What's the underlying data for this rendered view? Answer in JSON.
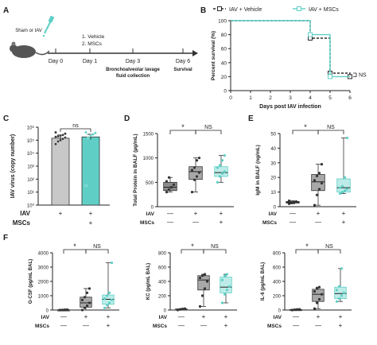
{
  "colors": {
    "gray": "#a8a8a8",
    "teal": "#5fcfc6",
    "dark": "#2b2b2b",
    "light": "#e6e6e6"
  },
  "panels": {
    "A": "A",
    "B": "B",
    "C": "C",
    "D": "D",
    "E": "E",
    "F": "F"
  },
  "timeline": {
    "group": "Sham or IAV",
    "treatments": [
      "1. Vehicle",
      "2. MSCs"
    ],
    "days": [
      "Day 0",
      "Day 1",
      "Day 3",
      "Day 6"
    ],
    "day3_note": "Bronchoalveolar lavage fluid collection",
    "day6_note": "Survival"
  },
  "row_labels": {
    "iav": "IAV",
    "mscs": "MSCs"
  },
  "chart_data": [
    {
      "panel": "B",
      "type": "line",
      "xlabel": "Days post IAV infection",
      "ylabel": "Percent survival (%)",
      "xlim": [
        0,
        6
      ],
      "ylim": [
        0,
        100
      ],
      "xticks": [
        "0",
        "1",
        "2",
        "3",
        "4",
        "5",
        "6"
      ],
      "yticks": [
        "0",
        "20",
        "40",
        "60",
        "80",
        "100"
      ],
      "legend": "top",
      "ns": "NS",
      "series": [
        {
          "name": "IAV + Vehicle",
          "color": "#2b2b2b",
          "dashed": true,
          "steps": [
            [
              0,
              100
            ],
            [
              4,
              100
            ],
            [
              4,
              75
            ],
            [
              5,
              75
            ],
            [
              5,
              25
            ],
            [
              6,
              25
            ],
            [
              6,
              20
            ]
          ]
        },
        {
          "name": "IAV + MSCs",
          "color": "#5fcfc6",
          "dashed": false,
          "steps": [
            [
              0,
              100
            ],
            [
              4,
              100
            ],
            [
              4,
              80
            ],
            [
              5,
              80
            ],
            [
              5,
              20
            ],
            [
              6,
              20
            ]
          ]
        }
      ]
    },
    {
      "panel": "C",
      "type": "bar",
      "scale": "log",
      "ylabel": "IAV virus (copy number)",
      "yticks": [
        "10⁰",
        "10¹",
        "10²",
        "10³",
        "10⁴",
        "10⁵",
        "10⁶"
      ],
      "ylim": [
        0,
        6
      ],
      "bars": [
        {
          "group": "IAV + Vehicle",
          "mean": 5.15,
          "err": 0.25,
          "color": "#c8c8c8",
          "points": [
            4.7,
            4.9,
            5.0,
            5.1,
            5.2,
            5.25,
            5.3,
            5.35,
            5.4,
            5.5,
            5.6
          ]
        },
        {
          "group": "IAV + MSCs",
          "mean": 5.25,
          "err": 0.2,
          "color": "#5fcfc6",
          "points": [
            1.5,
            5.2,
            5.35,
            5.45,
            5.55,
            5.6
          ]
        }
      ],
      "sig": "ns",
      "iav": [
        "+",
        "+"
      ],
      "mscs": [
        "",
        "+"
      ]
    },
    {
      "panel": "D",
      "type": "box",
      "ylabel": "Total Protein in BALF (µg/mL)",
      "yticks": [
        "0",
        "500",
        "1000",
        "1500"
      ],
      "ylim": [
        0,
        1500
      ],
      "boxes": [
        {
          "group": "Sham",
          "min": 300,
          "q1": 330,
          "median": 400,
          "q3": 500,
          "max": 600,
          "color": "#8a8a8a",
          "points": [
            300,
            350,
            400,
            450,
            520,
            600
          ]
        },
        {
          "group": "IAV + Vehicle",
          "min": 300,
          "q1": 560,
          "median": 720,
          "q3": 820,
          "max": 1000,
          "color": "#a8a8a8",
          "points": [
            300,
            550,
            620,
            700,
            750,
            800,
            950,
            1000
          ]
        },
        {
          "group": "IAV + MSCs",
          "min": 500,
          "q1": 620,
          "median": 700,
          "q3": 820,
          "max": 1050,
          "color": "#bdece8",
          "points": [
            500,
            620,
            680,
            720,
            800,
            850,
            950,
            1050
          ]
        }
      ],
      "sig": [
        "*",
        "NS"
      ],
      "iav": [
        "—",
        "+",
        "+"
      ],
      "mscs": [
        "—",
        "—",
        "+"
      ]
    },
    {
      "panel": "E",
      "type": "box",
      "ylabel": "IgM in BALF (ng/mL)",
      "yticks": [
        "0",
        "10",
        "20",
        "30",
        "40",
        "50"
      ],
      "ylim": [
        0,
        50
      ],
      "boxes": [
        {
          "group": "Sham",
          "min": 2,
          "q1": 2.5,
          "median": 3,
          "q3": 3.5,
          "max": 4,
          "color": "#8a8a8a",
          "points": [
            2,
            2.5,
            3,
            3.5,
            4
          ]
        },
        {
          "group": "IAV + Vehicle",
          "min": 1,
          "q1": 11,
          "median": 17,
          "q3": 22,
          "max": 29,
          "color": "#a8a8a8",
          "points": [
            1,
            8,
            12,
            16,
            18,
            21,
            23,
            29
          ]
        },
        {
          "group": "IAV + MSCs",
          "min": 9,
          "q1": 10,
          "median": 13,
          "q3": 19,
          "max": 47,
          "color": "#bdece8",
          "points": [
            9,
            10,
            11,
            12,
            13,
            14,
            20,
            47
          ]
        }
      ],
      "sig": [
        "*",
        "NS"
      ],
      "iav": [
        "—",
        "+",
        "+"
      ],
      "mscs": [
        "—",
        "—",
        "+"
      ]
    },
    {
      "panel": "F1",
      "type": "box",
      "ylabel": "G-CSF (pg/mL BAL)",
      "yticks": [
        "0",
        "1000",
        "2000",
        "3000",
        "4000"
      ],
      "ylim": [
        0,
        4000
      ],
      "boxes": [
        {
          "group": "Sham",
          "min": 0,
          "q1": 0,
          "median": 10,
          "q3": 20,
          "max": 30,
          "color": "#8a8a8a",
          "points": [
            0,
            10,
            20,
            30
          ]
        },
        {
          "group": "IAV + Vehicle",
          "min": 0,
          "q1": 200,
          "median": 500,
          "q3": 900,
          "max": 1500,
          "color": "#a8a8a8",
          "points": [
            0,
            150,
            300,
            500,
            700,
            900,
            1200,
            1500
          ]
        },
        {
          "group": "IAV + MSCs",
          "min": 150,
          "q1": 400,
          "median": 750,
          "q3": 1050,
          "max": 3300,
          "color": "#bdece8",
          "points": [
            150,
            350,
            500,
            700,
            800,
            1000,
            1200,
            3300
          ]
        }
      ],
      "sig": [
        "*",
        "NS"
      ],
      "iav": [
        "—",
        "+",
        "+"
      ],
      "mscs": [
        "—",
        "—",
        "+"
      ]
    },
    {
      "panel": "F2",
      "type": "box",
      "ylabel": "KC (pg/mL BAL)",
      "yticks": [
        "0",
        "200",
        "400",
        "600",
        "800"
      ],
      "ylim": [
        0,
        800
      ],
      "boxes": [
        {
          "group": "Sham",
          "min": 0,
          "q1": 5,
          "median": 10,
          "q3": 15,
          "max": 20,
          "color": "#8a8a8a",
          "points": [
            0,
            8,
            15,
            20
          ]
        },
        {
          "group": "IAV + Vehicle",
          "min": 50,
          "q1": 280,
          "median": 420,
          "q3": 480,
          "max": 500,
          "color": "#a8a8a8",
          "points": [
            50,
            200,
            300,
            400,
            450,
            480,
            500
          ]
        },
        {
          "group": "IAV + MSCs",
          "min": 100,
          "q1": 240,
          "median": 320,
          "q3": 460,
          "max": 500,
          "color": "#bdece8",
          "points": [
            100,
            220,
            280,
            330,
            420,
            480,
            500
          ]
        }
      ],
      "sig": [
        "*",
        "NS"
      ],
      "iav": [
        "—",
        "+",
        "+"
      ],
      "mscs": [
        "—",
        "—",
        "+"
      ]
    },
    {
      "panel": "F3",
      "type": "box",
      "ylabel": "IL-6 (pg/mL BAL)",
      "yticks": [
        "0",
        "200",
        "400",
        "600",
        "800"
      ],
      "ylim": [
        0,
        800
      ],
      "boxes": [
        {
          "group": "Sham",
          "min": 0,
          "q1": 2,
          "median": 5,
          "q3": 8,
          "max": 10,
          "color": "#8a8a8a",
          "points": [
            0,
            5,
            8,
            10
          ]
        },
        {
          "group": "IAV + Vehicle",
          "min": 20,
          "q1": 120,
          "median": 220,
          "q3": 290,
          "max": 320,
          "color": "#a8a8a8",
          "points": [
            20,
            100,
            150,
            220,
            260,
            300,
            320
          ]
        },
        {
          "group": "IAV + MSCs",
          "min": 120,
          "q1": 160,
          "median": 230,
          "q3": 320,
          "max": 580,
          "color": "#bdece8",
          "points": [
            120,
            160,
            200,
            240,
            280,
            330,
            580
          ]
        }
      ],
      "sig": [
        "*",
        "NS"
      ],
      "iav": [
        "—",
        "+",
        "+"
      ],
      "mscs": [
        "—",
        "—",
        "+"
      ]
    }
  ]
}
